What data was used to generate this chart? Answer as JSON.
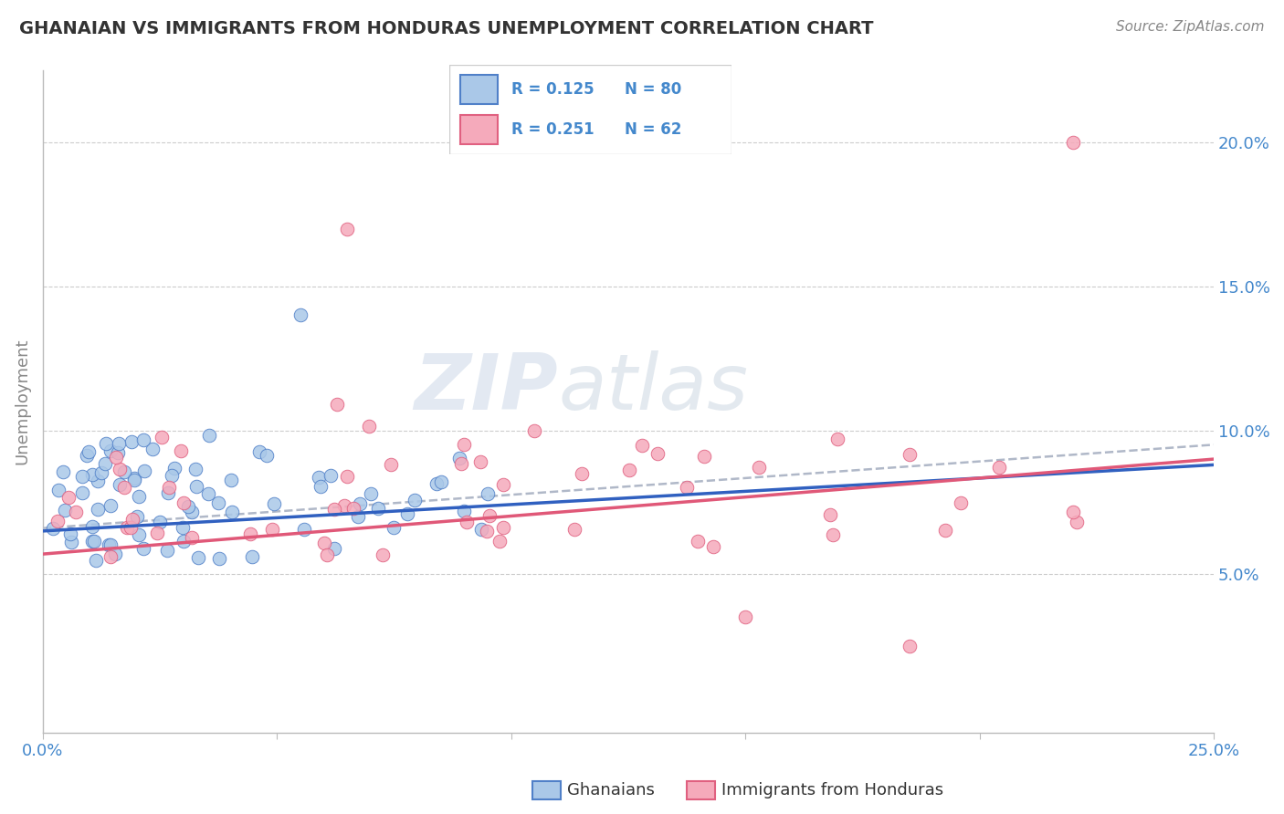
{
  "title": "GHANAIAN VS IMMIGRANTS FROM HONDURAS UNEMPLOYMENT CORRELATION CHART",
  "source": "Source: ZipAtlas.com",
  "ylabel": "Unemployment",
  "y_ticks": [
    0.05,
    0.1,
    0.15,
    0.2
  ],
  "y_tick_labels": [
    "5.0%",
    "10.0%",
    "15.0%",
    "20.0%"
  ],
  "x_range": [
    0.0,
    0.25
  ],
  "y_range": [
    -0.005,
    0.225
  ],
  "legend_blue_r": "R = 0.125",
  "legend_blue_n": "N = 80",
  "legend_pink_r": "R = 0.251",
  "legend_pink_n": "N = 62",
  "blue_fill": "#aac8e8",
  "pink_fill": "#f5aabb",
  "blue_edge": "#5080c8",
  "pink_edge": "#e06080",
  "blue_line": "#3060c0",
  "pink_line": "#e05878",
  "dash_line": "#b0b8c8",
  "blue_label": "Ghanaians",
  "pink_label": "Immigrants from Honduras",
  "watermark_zip": "ZIP",
  "watermark_atlas": "atlas",
  "title_color": "#333333",
  "source_color": "#888888",
  "tick_color": "#4488cc",
  "ylabel_color": "#888888",
  "grid_color": "#cccccc"
}
